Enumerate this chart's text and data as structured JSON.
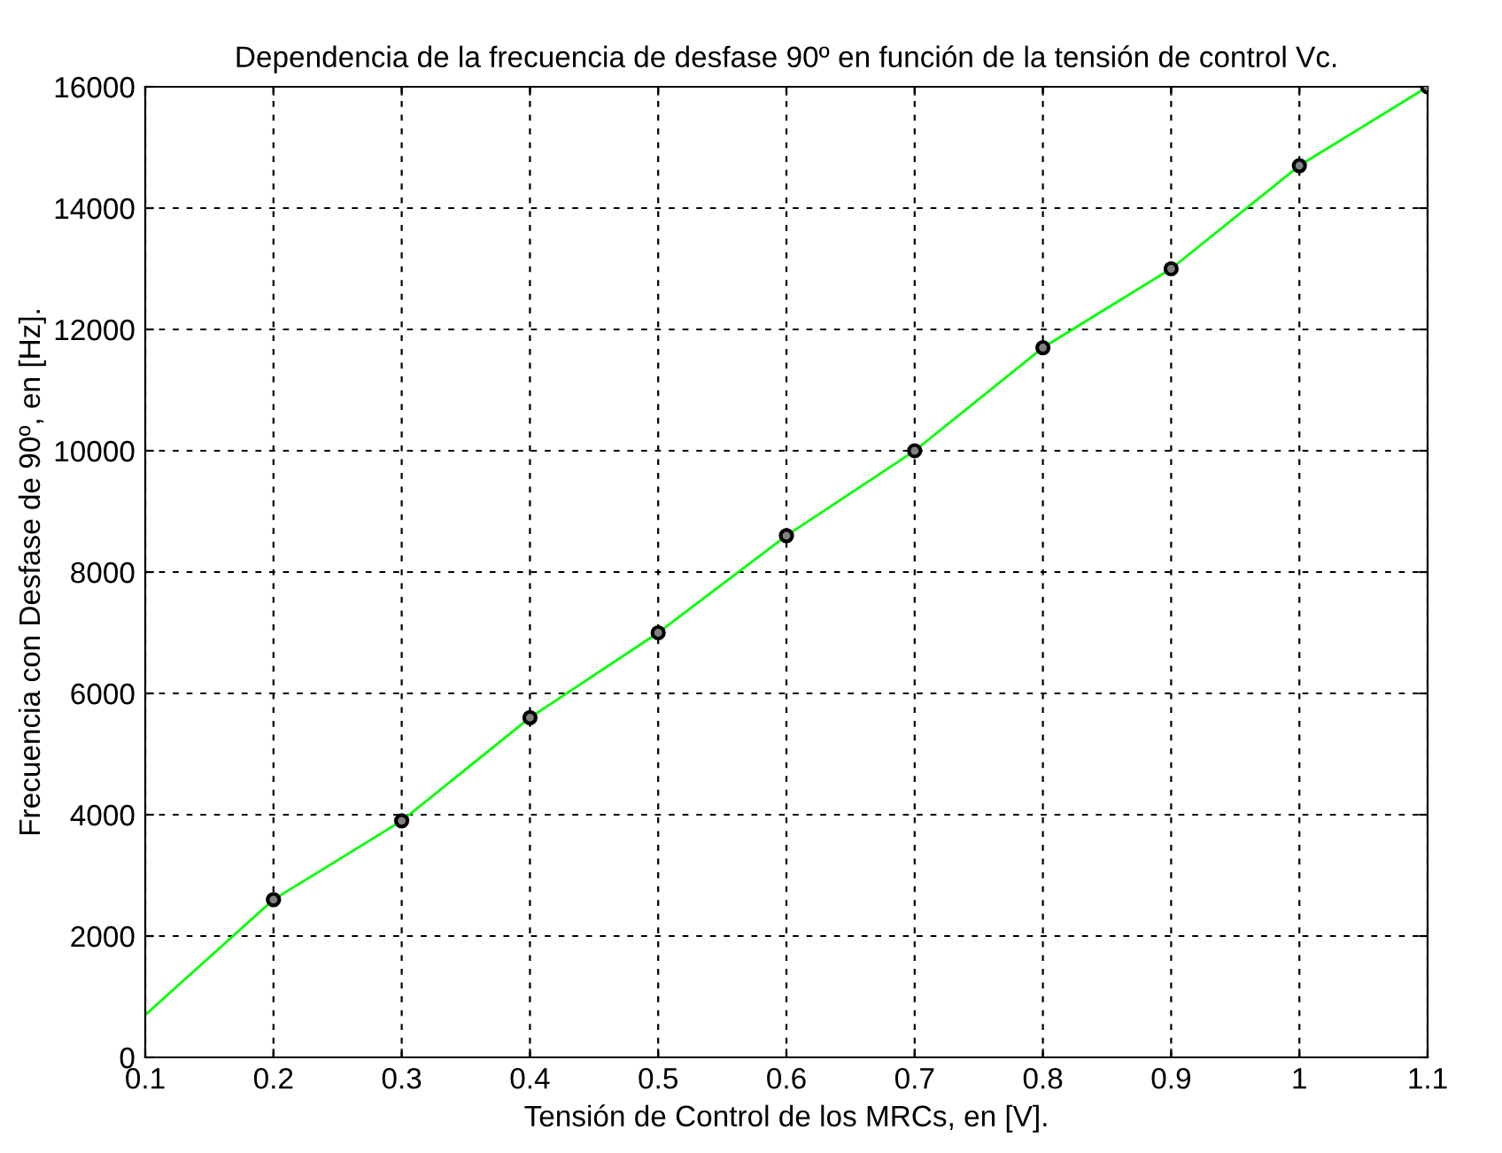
{
  "chart_data": {
    "type": "line",
    "title": "Dependencia de la frecuencia de desfase 90º en función de la tensión de control Vc.",
    "xlabel": "Tensión de Control de los MRCs, en [V].",
    "ylabel": "Frecuencia con Desfase de 90º, en [Hz].",
    "series": [
      {
        "color": "#00ff00",
        "marker": "none",
        "x": [
          0.1,
          0.2,
          0.3,
          0.4,
          0.5,
          0.6,
          0.7,
          0.8,
          0.9,
          1.0,
          1.1
        ],
        "values": [
          700,
          2600,
          3900,
          5600,
          7000,
          8600,
          10000,
          11700,
          13000,
          14700,
          16000
        ]
      },
      {
        "type": "scatter",
        "color": "#000000",
        "marker": "circle",
        "x": [
          0.2,
          0.3,
          0.4,
          0.5,
          0.6,
          0.7,
          0.8,
          0.9,
          1.0,
          1.1
        ],
        "values": [
          2600,
          3900,
          5600,
          7000,
          8600,
          10000,
          11700,
          13000,
          14700,
          16000
        ]
      }
    ],
    "xlim": [
      0.1,
      1.1
    ],
    "xticks": [
      0.1,
      0.2,
      0.3,
      0.4,
      0.5,
      0.6,
      0.7,
      0.8,
      0.9,
      1,
      1.1
    ],
    "ylim": [
      0,
      16000
    ],
    "yticks": [
      0,
      2000,
      4000,
      6000,
      8000,
      10000,
      12000,
      14000,
      16000
    ],
    "grid": true
  }
}
